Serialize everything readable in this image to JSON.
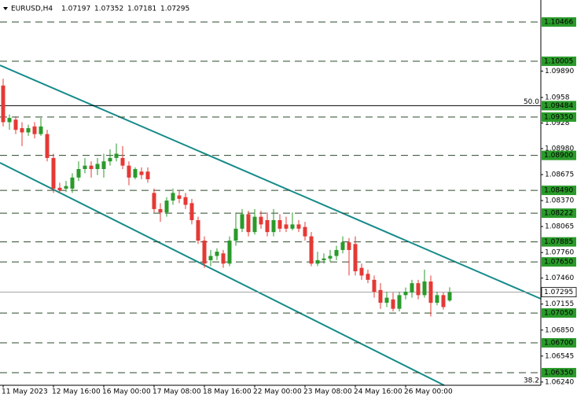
{
  "chart_data": {
    "type": "candlestick",
    "title": "EURUSD,H4",
    "categories": [
      "11 May 2023",
      null,
      null,
      null,
      null,
      null,
      null,
      null,
      "12 May 16:00",
      null,
      null,
      null,
      null,
      null,
      null,
      null,
      "16 May 00:00",
      null,
      null,
      null,
      null,
      null,
      null,
      null,
      "17 May 08:00",
      null,
      null,
      null,
      null,
      null,
      null,
      null,
      "18 May 16:00",
      null,
      null,
      null,
      null,
      null,
      null,
      null,
      "22 May 00:00",
      null,
      null,
      null,
      null,
      null,
      null,
      null,
      "23 May 08:00",
      null,
      null,
      null,
      null,
      null,
      null,
      null,
      "24 May 16:00",
      null,
      null,
      null,
      null,
      null,
      null,
      null,
      "26 May 00:00",
      null,
      null,
      null,
      null,
      null,
      null,
      null
    ],
    "open": [
      1.0972,
      1.0929,
      1.0932,
      1.0922,
      1.0917,
      1.0924,
      1.0915,
      1.0915,
      1.0887,
      1.0852,
      1.0851,
      1.0851,
      1.0864,
      1.0874,
      1.0878,
      1.0874,
      1.0874,
      1.0883,
      1.0887,
      1.0887,
      1.0878,
      1.0864,
      1.0871,
      1.0871,
      1.0846,
      1.0827,
      1.0823,
      1.0837,
      1.0843,
      1.0841,
      1.0834,
      1.0814,
      1.079,
      1.0767,
      1.0772,
      1.0775,
      1.0763,
      1.079,
      1.0804,
      1.0821,
      1.08,
      1.0818,
      1.0814,
      1.08,
      1.0814,
      1.0809,
      1.0804,
      1.0809,
      1.0806,
      1.0795,
      1.0763,
      1.0767,
      1.0769,
      1.0772,
      1.0779,
      1.0788,
      1.0786,
      1.0758,
      1.0751,
      1.0744,
      1.0732,
      1.0717,
      1.0721,
      1.071,
      1.0726,
      1.0729,
      1.074,
      1.0726,
      1.0742,
      1.0717,
      1.0726,
      1.07197
    ],
    "high": [
      1.098,
      1.0938,
      1.0936,
      1.0929,
      1.0926,
      1.0929,
      1.0934,
      1.092,
      1.0892,
      1.0858,
      1.086,
      1.0869,
      1.0883,
      1.0887,
      1.0883,
      1.0887,
      1.0892,
      1.0897,
      1.0904,
      1.0901,
      1.0883,
      1.0876,
      1.0876,
      1.0876,
      1.0851,
      1.0834,
      1.0841,
      1.0851,
      1.0849,
      1.0846,
      1.0839,
      1.0818,
      1.0795,
      1.0779,
      1.0781,
      1.0779,
      1.0795,
      1.0823,
      1.0827,
      1.0825,
      1.0827,
      1.0825,
      1.0823,
      1.0827,
      1.0821,
      1.0818,
      1.0823,
      1.0814,
      1.0812,
      1.08,
      1.0777,
      1.0775,
      1.0779,
      1.0784,
      1.0795,
      1.0793,
      1.0795,
      1.0763,
      1.0756,
      1.0749,
      1.074,
      1.073,
      1.0729,
      1.073,
      1.0735,
      1.0744,
      1.0744,
      1.0756,
      1.0749,
      1.073,
      1.0729,
      1.07352
    ],
    "low": [
      1.0924,
      1.092,
      1.0915,
      1.0901,
      1.0913,
      1.091,
      1.0913,
      1.0883,
      1.0846,
      1.0846,
      1.0847,
      1.0846,
      1.086,
      1.0869,
      1.0864,
      1.0867,
      1.0864,
      1.0878,
      1.0883,
      1.0874,
      1.0855,
      1.0862,
      1.0862,
      1.0858,
      1.0823,
      1.0812,
      1.0818,
      1.0832,
      1.0834,
      1.0827,
      1.0809,
      1.0786,
      1.0758,
      1.076,
      1.0767,
      1.0758,
      1.076,
      1.0784,
      1.08,
      1.0795,
      1.0797,
      1.0804,
      1.0795,
      1.0795,
      1.08,
      1.08,
      1.0802,
      1.08,
      1.079,
      1.076,
      1.076,
      1.0763,
      1.0765,
      1.0767,
      1.0775,
      1.0749,
      1.0749,
      1.0744,
      1.074,
      1.0723,
      1.071,
      1.0712,
      1.0707,
      1.0707,
      1.0721,
      1.0723,
      1.0721,
      1.0723,
      1.0701,
      1.0714,
      1.0709,
      1.07181
    ],
    "close": [
      1.0929,
      1.0934,
      1.092,
      1.0917,
      1.0922,
      1.0915,
      1.0924,
      1.0887,
      1.0851,
      1.0849,
      1.0854,
      1.0864,
      1.0874,
      1.0878,
      1.0874,
      1.088,
      1.0883,
      1.0887,
      1.0892,
      1.0878,
      1.0864,
      1.0874,
      1.0867,
      1.0862,
      1.0827,
      1.0823,
      1.0837,
      1.0846,
      1.0839,
      1.0832,
      1.0814,
      1.079,
      1.0763,
      1.0772,
      1.0777,
      1.0763,
      1.079,
      1.0804,
      1.0821,
      1.08,
      1.0818,
      1.0809,
      1.08,
      1.0814,
      1.0804,
      1.0804,
      1.0809,
      1.0804,
      1.0795,
      1.0763,
      1.0767,
      1.0769,
      1.0772,
      1.0779,
      1.0788,
      1.0779,
      1.0754,
      1.0749,
      1.0744,
      1.073,
      1.0717,
      1.0723,
      1.071,
      1.0726,
      1.073,
      1.074,
      1.0726,
      1.0742,
      1.0717,
      1.0726,
      1.0712,
      1.07295
    ],
    "up_color": "#2a9a2a",
    "down_color": "#e53935",
    "ylim": [
      1.06202,
      1.10724
    ],
    "yticks": [
      {
        "value": 1.0989,
        "label": "1.09890"
      },
      1.0958,
      1.0928,
      {
        "value": 1.0898,
        "label": "1.08980"
      },
      1.08675,
      {
        "value": 1.0837,
        "label": "1.08370"
      },
      1.08065,
      {
        "value": 1.0776,
        "label": "1.07760"
      },
      {
        "value": 1.0746,
        "label": "1.07460"
      },
      1.07155,
      {
        "value": 1.0685,
        "label": "1.06850"
      },
      1.06545,
      {
        "value": 1.0624,
        "label": "1.06240"
      }
    ],
    "levels": [
      1.10466,
      1.10005,
      1.09484,
      {
        "value": 1.0935,
        "label": "1.09350"
      },
      {
        "value": 1.089,
        "label": "1.08900"
      },
      {
        "value": 1.0849,
        "label": "1.08490"
      },
      1.08222,
      1.07885,
      {
        "value": 1.0765,
        "label": "1.07650"
      },
      {
        "value": 1.0705,
        "label": "1.07050"
      },
      {
        "value": 1.067,
        "label": "1.06700"
      },
      {
        "value": 1.0635,
        "label": "1.06350"
      }
    ],
    "level_color": "#2a9a2a",
    "fib": [
      {
        "label": "50.0",
        "value": 1.09484
      },
      {
        "label": "38.2",
        "value": 1.0621
      }
    ]
  }
}
